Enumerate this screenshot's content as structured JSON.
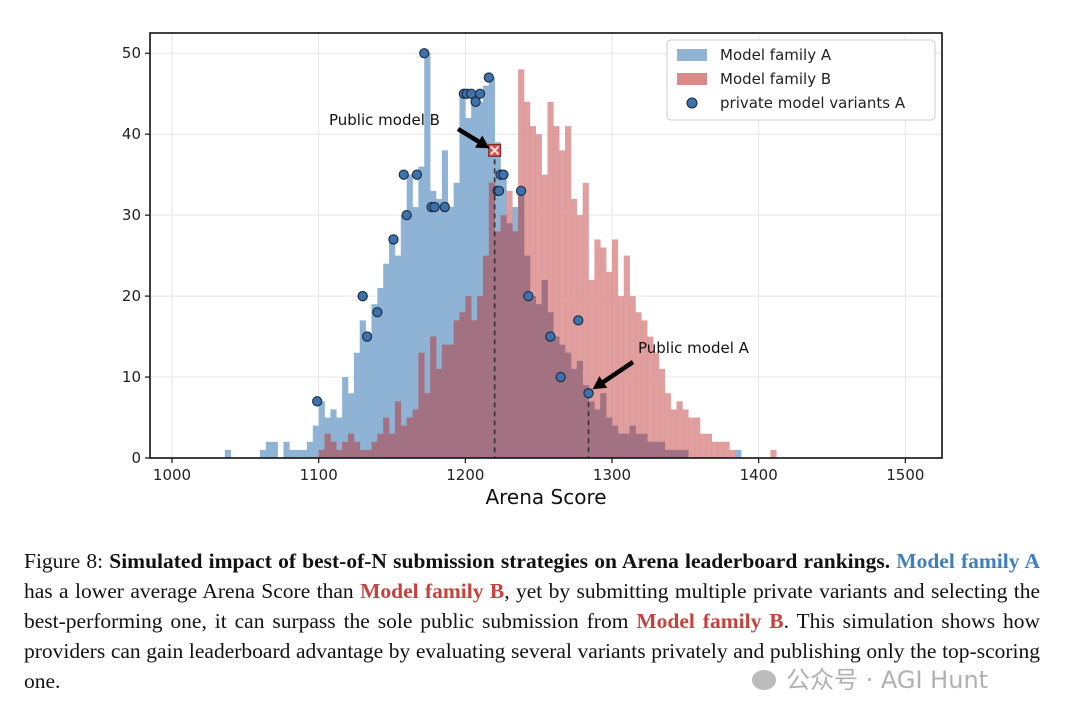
{
  "chart_data": {
    "type": "histogram",
    "xlabel": "Arena Score",
    "ylabel": "",
    "xlim": [
      985,
      1525
    ],
    "ylim": [
      0,
      52.5
    ],
    "xticks": [
      1000,
      1100,
      1200,
      1300,
      1400,
      1500
    ],
    "yticks": [
      0,
      10,
      20,
      30,
      40,
      50
    ],
    "grid": true,
    "legend_position": "top-right",
    "bin_width": 4,
    "series": [
      {
        "name": "Model family A",
        "color": "#8fb3d5",
        "bin_starts": [
          1036,
          1060,
          1064,
          1068,
          1072,
          1076,
          1080,
          1084,
          1088,
          1092,
          1096,
          1100,
          1104,
          1108,
          1112,
          1116,
          1120,
          1124,
          1128,
          1132,
          1136,
          1140,
          1144,
          1148,
          1152,
          1156,
          1160,
          1164,
          1168,
          1172,
          1176,
          1180,
          1184,
          1188,
          1192,
          1196,
          1200,
          1204,
          1208,
          1212,
          1216,
          1220,
          1224,
          1228,
          1232,
          1236,
          1240,
          1244,
          1248,
          1252,
          1256,
          1260,
          1264,
          1268,
          1272,
          1276,
          1280,
          1284,
          1288,
          1292,
          1296,
          1300,
          1304,
          1308,
          1312,
          1316,
          1320,
          1324,
          1328,
          1332,
          1336,
          1340,
          1344,
          1348,
          1352,
          1356,
          1360,
          1364,
          1368,
          1372,
          1376,
          1380,
          1384
        ],
        "counts": [
          1,
          1,
          2,
          2,
          0,
          2,
          1,
          1,
          1,
          2,
          4,
          7,
          5,
          6,
          5,
          10,
          8,
          13,
          17,
          15,
          19,
          21,
          24,
          27,
          25,
          30,
          35,
          31,
          36,
          50,
          33,
          32,
          38,
          31,
          34,
          45,
          42,
          45,
          44,
          46,
          47,
          39,
          35,
          29,
          31,
          33,
          25,
          20,
          19,
          22,
          18,
          15,
          14,
          13,
          11,
          12,
          9,
          7,
          6,
          8,
          5,
          4,
          3,
          3,
          4,
          3,
          3,
          2,
          2,
          2,
          1,
          1,
          1,
          1,
          0,
          0,
          0,
          0,
          0,
          0,
          0,
          0,
          1
        ]
      },
      {
        "name": "Model family B",
        "color": "#d98a89",
        "bin_starts": [
          1100,
          1104,
          1108,
          1112,
          1116,
          1120,
          1124,
          1128,
          1132,
          1136,
          1140,
          1144,
          1148,
          1152,
          1156,
          1160,
          1164,
          1168,
          1172,
          1176,
          1180,
          1184,
          1188,
          1192,
          1196,
          1200,
          1204,
          1208,
          1212,
          1216,
          1220,
          1224,
          1228,
          1232,
          1236,
          1240,
          1244,
          1248,
          1252,
          1256,
          1260,
          1264,
          1268,
          1272,
          1276,
          1280,
          1284,
          1288,
          1292,
          1296,
          1300,
          1304,
          1308,
          1312,
          1316,
          1320,
          1324,
          1328,
          1332,
          1336,
          1340,
          1344,
          1348,
          1352,
          1356,
          1360,
          1364,
          1368,
          1372,
          1376,
          1380,
          1384,
          1388,
          1392,
          1396,
          1400,
          1404,
          1408
        ],
        "counts": [
          1,
          3,
          2,
          1,
          2,
          3,
          2,
          1,
          1,
          2,
          3,
          5,
          3,
          7,
          4,
          5,
          6,
          13,
          8,
          15,
          11,
          14,
          14,
          17,
          18,
          20,
          17,
          20,
          25,
          34,
          28,
          30,
          33,
          28,
          48,
          44,
          41,
          40,
          35,
          44,
          41,
          38,
          41,
          32,
          30,
          34,
          22,
          27,
          26,
          23,
          27,
          20,
          25,
          20,
          18,
          17,
          15,
          13,
          11,
          8,
          6,
          7,
          6,
          5,
          5,
          3,
          3,
          2,
          2,
          2,
          1,
          0,
          0,
          0,
          0,
          0,
          0,
          1
        ]
      }
    ],
    "scatter": {
      "name": "private model variants A",
      "color": "#3d72ac",
      "x": [
        1099,
        1130,
        1130,
        1133,
        1140,
        1151,
        1158,
        1160,
        1167,
        1172,
        1177,
        1179,
        1186,
        1199,
        1201,
        1204,
        1207,
        1210,
        1216,
        1222,
        1223,
        1224,
        1226,
        1238,
        1243,
        1258,
        1265,
        1277,
        1284
      ],
      "y": [
        7,
        20,
        20,
        15,
        18,
        27,
        35,
        30,
        35,
        50,
        31,
        31,
        31,
        45,
        45,
        45,
        44,
        45,
        47,
        33,
        33,
        35,
        35,
        33,
        20,
        15,
        10,
        17,
        8
      ]
    },
    "markers": [
      {
        "label": "Public model B",
        "x": 1220,
        "y": 38,
        "color": "#d0504c"
      },
      {
        "label": "Public model A",
        "x": 1284,
        "y": 8,
        "color": "#3d72ac"
      }
    ]
  },
  "caption": {
    "figure_label": "Figure 8:",
    "title": "Simulated impact of best-of-N submission strategies on Arena leaderboard rankings.",
    "part1_a": "Model family A",
    "part1_mid": "has a lower average Arena Score than",
    "part1_b": "Model family B",
    "part1_end": ", yet by submitting multiple private variants and selecting the best-performing one, it can surpass the sole public submission from",
    "part2_b": "Model family B",
    "part2_end": ". This simulation shows how providers can gain leaderboard advantage by evaluating several variants privately and publishing only the top-scoring one."
  },
  "watermark": "公众号 · AGI Hunt"
}
